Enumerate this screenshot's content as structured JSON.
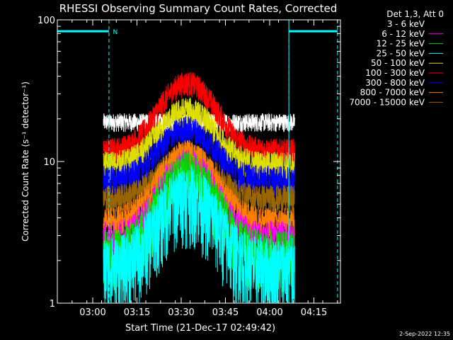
{
  "footer_date": "2-Sep-2022 12:35",
  "colors": {
    "background": "#000000",
    "axes": "#ffffff",
    "night": "#00ffff"
  },
  "chart_data": {
    "type": "line",
    "title": "RHESSI Observing Summary Count Rates, Corrected",
    "xlabel": "Start Time (21-Dec-17 02:49:42)",
    "ylabel": "Corrected Count Rate (s⁻¹ detector⁻¹)",
    "y_scale": "log",
    "ylim": [
      1,
      100
    ],
    "xlim_minutes": [
      -12,
      84
    ],
    "x_ticks": [
      {
        "label": "03:00",
        "minute": 0
      },
      {
        "label": "03:15",
        "minute": 15
      },
      {
        "label": "03:30",
        "minute": 30
      },
      {
        "label": "03:45",
        "minute": 45
      },
      {
        "label": "04:00",
        "minute": 60
      },
      {
        "label": "04:15",
        "minute": 75
      }
    ],
    "y_ticks": [
      {
        "label": "1",
        "value": 1
      },
      {
        "label": "10",
        "value": 10
      },
      {
        "label": "100",
        "value": 100
      }
    ],
    "legend": {
      "header": "Det 1,3, Att 0",
      "placement": "outside-top-right",
      "entries": [
        {
          "name": "3 - 6 keV",
          "color": "#000000"
        },
        {
          "name": "6 - 12 keV",
          "color": "#ff00ff"
        },
        {
          "name": "12 - 25 keV",
          "color": "#00dd00"
        },
        {
          "name": "25 - 50 keV",
          "color": "#00ffff"
        },
        {
          "name": "50 - 100 keV",
          "color": "#dddd00"
        },
        {
          "name": "100 - 300 keV",
          "color": "#ff0000"
        },
        {
          "name": "300 - 800 keV",
          "color": "#0000ff"
        },
        {
          "name": "800 - 7000 keV",
          "color": "#ff8000"
        },
        {
          "name": "7000 - 15000 keV",
          "color": "#996600"
        }
      ]
    },
    "data_start_minute": 3.6,
    "data_end_minute": 68.5,
    "flags": {
      "night_label": "N",
      "night_bars": [
        [
          -12,
          5.5
        ],
        [
          66.5,
          83
        ]
      ],
      "night_bar_level": 83,
      "night_boundaries_minutes": [
        5.5,
        66.5,
        83
      ]
    },
    "series": [
      {
        "name": "3 - 6 keV",
        "color": "#ffffff",
        "base": 19,
        "peak": 19,
        "spread": 0.05
      },
      {
        "name": "100 - 300 keV",
        "color": "#ff0000",
        "base": 12,
        "peak": 36,
        "spread": 0.07
      },
      {
        "name": "50 - 100 keV",
        "color": "#dddd00",
        "base": 9.5,
        "peak": 23,
        "spread": 0.08
      },
      {
        "name": "300 - 800 keV",
        "color": "#0000ff",
        "base": 7.5,
        "peak": 17,
        "spread": 0.08
      },
      {
        "name": "7000 - 15000 keV",
        "color": "#996600",
        "base": 5.5,
        "peak": 11,
        "spread": 0.08
      },
      {
        "name": "800 - 7000 keV",
        "color": "#ff8000",
        "base": 3.8,
        "peak": 11.5,
        "spread": 0.08
      },
      {
        "name": "6 - 12 keV",
        "color": "#ff00ff",
        "base": 2.8,
        "peak": 9,
        "spread": 0.12
      },
      {
        "name": "12 - 25 keV",
        "color": "#00dd00",
        "base": 2.2,
        "peak": 8,
        "spread": 0.16
      },
      {
        "name": "25 - 50 keV",
        "color": "#00ffff",
        "base": 1.8,
        "peak": 6,
        "spread": 0.2
      }
    ]
  }
}
